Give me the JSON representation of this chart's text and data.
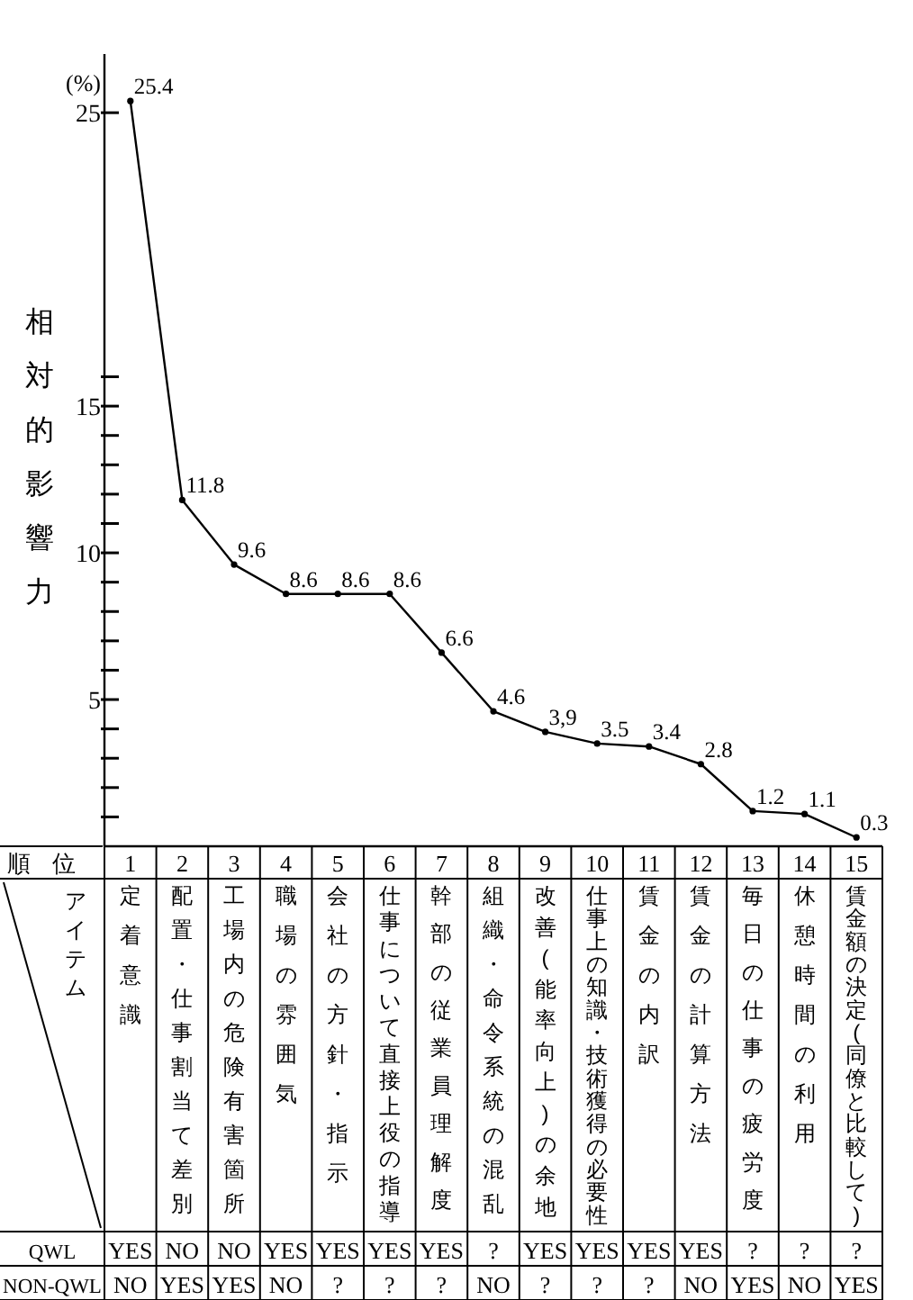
{
  "chart_data": {
    "type": "line",
    "ylabel": "相対的影響力",
    "x": [
      1,
      2,
      3,
      4,
      5,
      6,
      7,
      8,
      9,
      10,
      11,
      12,
      13,
      14,
      15
    ],
    "xlim": [
      0.5,
      15.5
    ],
    "xticks": [
      1,
      2,
      3,
      4,
      5,
      6,
      7,
      8,
      9,
      10,
      11,
      12,
      13,
      14,
      15
    ],
    "series": [
      {
        "color": "#000000",
        "values": [
          25.4,
          11.8,
          9.6,
          8.6,
          8.6,
          8.6,
          6.6,
          4.6,
          3.9,
          3.5,
          3.4,
          2.8,
          1.2,
          1.1,
          0.3
        ],
        "value_labels": [
          "25.4",
          "11.8",
          "9.6",
          "8.6",
          "8.6",
          "8.6",
          "6.6",
          "4.6",
          "3,9",
          "3.5",
          "3.4",
          "2.8",
          "1.2",
          "1.1",
          "0.3"
        ]
      }
    ],
    "ylim": [
      0,
      27
    ],
    "yticks": [
      {
        "value": 1,
        "label": null
      },
      {
        "value": 2,
        "label": null
      },
      {
        "value": 3,
        "label": null
      },
      {
        "value": 4,
        "label": null
      },
      5,
      {
        "value": 6,
        "label": null
      },
      {
        "value": 7,
        "label": null
      },
      {
        "value": 8,
        "label": null
      },
      {
        "value": 9,
        "label": null
      },
      10,
      {
        "value": 11,
        "label": null
      },
      {
        "value": 12,
        "label": null
      },
      {
        "value": 13,
        "label": null
      },
      {
        "value": 14,
        "label": null
      },
      15,
      {
        "value": 16,
        "label": null
      },
      25
    ],
    "marker": "circle",
    "line_style": "solid",
    "grid": false,
    "annotations": [
      "(%)",
      "順位",
      "アイテム",
      "定着意識",
      "配置・仕事割当て差別",
      "工場内の危険有害箇所",
      "職場の雰囲気",
      "会社の方針・指示",
      "仕事について直接上役の指導",
      "幹部の従業員理解度",
      "組織・命令系統の混乱",
      "改善(能率向上)の余地",
      "仕事上の知識・技術獲得の必要性",
      "賃金の内訳",
      "賃金の計算方法",
      "毎日の仕事の疲労度",
      "休憩時間の利用",
      "賃金額の決定(同僚と比較して)",
      "QWL",
      "YES",
      "NO",
      "NO",
      "YES",
      "YES",
      "YES",
      "YES",
      "?",
      "YES",
      "YES",
      "YES",
      "YES",
      "?",
      "?",
      "?",
      "NON-QWL",
      "NO",
      "YES",
      "YES",
      "NO",
      "?",
      "?",
      "?",
      "NO",
      "?",
      "?",
      "?",
      "NO",
      "YES",
      "NO",
      "YES"
    ]
  }
}
